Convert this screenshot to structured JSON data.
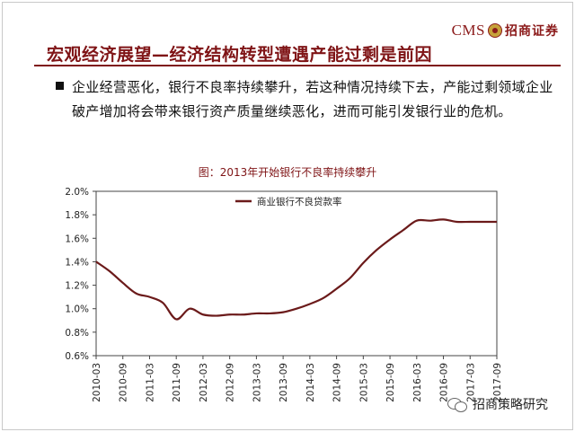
{
  "header": {
    "logo_text": "CMS",
    "logo_cn": "招商证券",
    "title": "宏观经济展望—经济结构转型遭遇产能过剩是前因"
  },
  "content": {
    "bullet": "企业经营恶化，银行不良率持续攀升，若这种情况持续下去，产能过剩领域企业破产增加将会带来银行资产质量继续恶化，进而可能引发银行业的危机。"
  },
  "chart_data": {
    "type": "line",
    "title": "图：2013年开始银行不良率持续攀升",
    "categories": [
      "2010-03",
      "2010-09",
      "2011-03",
      "2011-09",
      "2012-03",
      "2012-09",
      "2013-03",
      "2013-09",
      "2014-03",
      "2014-09",
      "2015-03",
      "2015-09",
      "2016-03",
      "2016-09",
      "2017-03",
      "2017-09"
    ],
    "series": [
      {
        "name": "商业银行不良贷款率",
        "color": "#6b1a1a",
        "x": [
          0,
          0.5,
          1,
          1.5,
          2,
          2.5,
          3,
          3.5,
          4,
          4.5,
          5,
          5.5,
          6,
          6.5,
          7,
          7.5,
          8,
          8.5,
          9,
          9.5,
          10,
          10.5,
          11,
          11.5,
          12,
          12.5,
          13,
          13.5,
          14,
          14.5,
          15
        ],
        "values": [
          1.4,
          1.32,
          1.22,
          1.13,
          1.1,
          1.05,
          0.91,
          1.0,
          0.95,
          0.94,
          0.95,
          0.95,
          0.96,
          0.96,
          0.97,
          1.0,
          1.04,
          1.09,
          1.17,
          1.26,
          1.39,
          1.5,
          1.59,
          1.67,
          1.75,
          1.75,
          1.76,
          1.74,
          1.74,
          1.74,
          1.74
        ]
      }
    ],
    "ylim": [
      0.6,
      2.0
    ],
    "yticks": [
      "0.6%",
      "0.8%",
      "1.0%",
      "1.2%",
      "1.4%",
      "1.6%",
      "1.8%",
      "2.0%"
    ],
    "ytick_values": [
      0.6,
      0.8,
      1.0,
      1.2,
      1.4,
      1.6,
      1.8,
      2.0
    ],
    "grid": false,
    "legend": "top-center"
  },
  "watermark": {
    "text": "招商策略研究"
  }
}
